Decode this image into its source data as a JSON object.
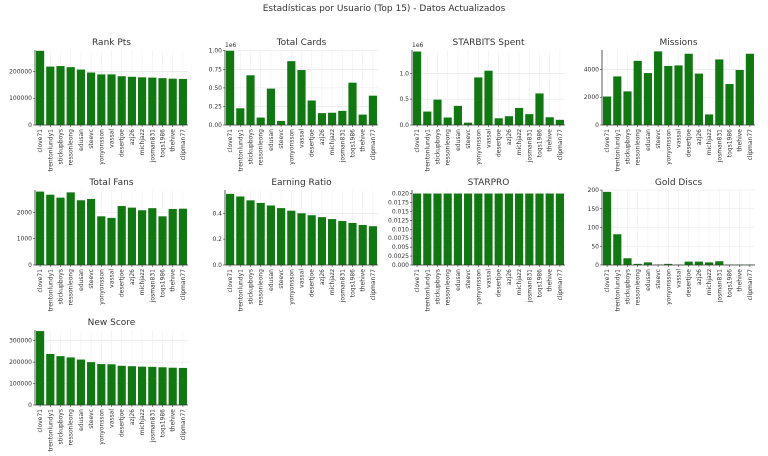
{
  "figure": {
    "title": "Estadísticas por Usuario (Top 15) - Datos Actualizados",
    "bar_color": "#107810"
  },
  "users": [
    "clove71",
    "trentonlundy1",
    "stickupboys",
    "ressonleong",
    "edusan",
    "steevc",
    "yonyonsson",
    "vassal",
    "desertjoe",
    "azj26",
    "michjazz",
    "josman831",
    "toqs1986",
    "thehive",
    "clipman77"
  ],
  "chart_data": [
    {
      "type": "bar",
      "title": "Rank Pts",
      "ylim": [
        0,
        280000
      ],
      "yticks": [
        0,
        100000,
        200000
      ],
      "ytick_labels": [
        "0",
        "100000",
        "200000"
      ],
      "multiplier": "",
      "values": [
        277000,
        218000,
        220000,
        216000,
        207000,
        196000,
        189000,
        189000,
        182000,
        180000,
        178000,
        177000,
        175000,
        173000,
        172000
      ]
    },
    {
      "type": "bar",
      "title": "Total Cards",
      "ylim": [
        0,
        1010000
      ],
      "yticks": [
        0,
        250000,
        500000,
        750000,
        1000000
      ],
      "ytick_labels": [
        "0.00",
        "0.25",
        "0.50",
        "0.75",
        "1.00"
      ],
      "multiplier": "1e6",
      "values": [
        1000000,
        225000,
        670000,
        100000,
        490000,
        55000,
        860000,
        740000,
        330000,
        160000,
        165000,
        190000,
        570000,
        140000,
        395000
      ]
    },
    {
      "type": "bar",
      "title": "STARBITS Spent",
      "ylim": [
        0,
        1450000
      ],
      "yticks": [
        0,
        500000,
        1000000
      ],
      "ytick_labels": [
        "0.0",
        "0.5",
        "1.0"
      ],
      "multiplier": "1e6",
      "values": [
        1420000,
        260000,
        490000,
        145000,
        370000,
        45000,
        920000,
        1050000,
        130000,
        170000,
        330000,
        210000,
        610000,
        150000,
        100000
      ]
    },
    {
      "type": "bar",
      "title": "Missions",
      "ylim": [
        0,
        5400
      ],
      "yticks": [
        0,
        2000,
        4000
      ],
      "ytick_labels": [
        "0",
        "2000",
        "4000"
      ],
      "multiplier": "",
      "values": [
        2050,
        3500,
        2420,
        4620,
        3740,
        5300,
        4250,
        4290,
        5130,
        3700,
        760,
        4720,
        2950,
        3960,
        5130
      ]
    },
    {
      "type": "bar",
      "title": "Total Fans",
      "ylim": [
        0,
        2850
      ],
      "yticks": [
        0,
        1000,
        2000
      ],
      "ytick_labels": [
        "0",
        "1000",
        "2000"
      ],
      "multiplier": "",
      "values": [
        2790,
        2670,
        2560,
        2760,
        2460,
        2510,
        1850,
        1790,
        2240,
        2180,
        2080,
        2160,
        1850,
        2130,
        2140
      ]
    },
    {
      "type": "bar",
      "title": "Earning Ratio",
      "ylim": [
        0,
        0.58
      ],
      "yticks": [
        0,
        0.2,
        0.4
      ],
      "ytick_labels": [
        "0.0",
        "0.2",
        "0.4"
      ],
      "multiplier": "",
      "values": [
        0.55,
        0.53,
        0.5,
        0.48,
        0.46,
        0.44,
        0.42,
        0.4,
        0.385,
        0.37,
        0.355,
        0.34,
        0.325,
        0.31,
        0.3
      ]
    },
    {
      "type": "bar",
      "title": "STARPRO",
      "ylim": [
        0,
        0.021
      ],
      "yticks": [
        0,
        0.0025,
        0.005,
        0.0075,
        0.01,
        0.0125,
        0.015,
        0.0175,
        0.02
      ],
      "ytick_labels": [
        "0.000",
        "0.0025",
        "0.005",
        "0.0075",
        "0.010",
        "0.0125",
        "0.015",
        "0.0175",
        "0.020"
      ],
      "multiplier": "",
      "values": [
        0.02,
        0.02,
        0.02,
        0.02,
        0.02,
        0.02,
        0.02,
        0.02,
        0.02,
        0.02,
        0.02,
        0.02,
        0.02,
        0.02,
        0.02
      ]
    },
    {
      "type": "bar",
      "title": "Gold Discs",
      "ylim": [
        0,
        200
      ],
      "yticks": [
        0,
        50,
        100,
        150,
        200
      ],
      "ytick_labels": [
        "0",
        "50",
        "100",
        "150",
        "200"
      ],
      "multiplier": "",
      "values": [
        195,
        82,
        18,
        3,
        7,
        1,
        3,
        1,
        9,
        9,
        7,
        10,
        1,
        1,
        1
      ]
    },
    {
      "type": "bar",
      "title": "New Score",
      "ylim": [
        0,
        350000
      ],
      "yticks": [
        0,
        100000,
        200000,
        300000
      ],
      "ytick_labels": [
        "0",
        "100000",
        "200000",
        "300000"
      ],
      "multiplier": "",
      "values": [
        345000,
        238000,
        228000,
        222000,
        212000,
        200000,
        191000,
        190000,
        183000,
        181000,
        179000,
        178000,
        176000,
        174000,
        173000
      ]
    }
  ]
}
